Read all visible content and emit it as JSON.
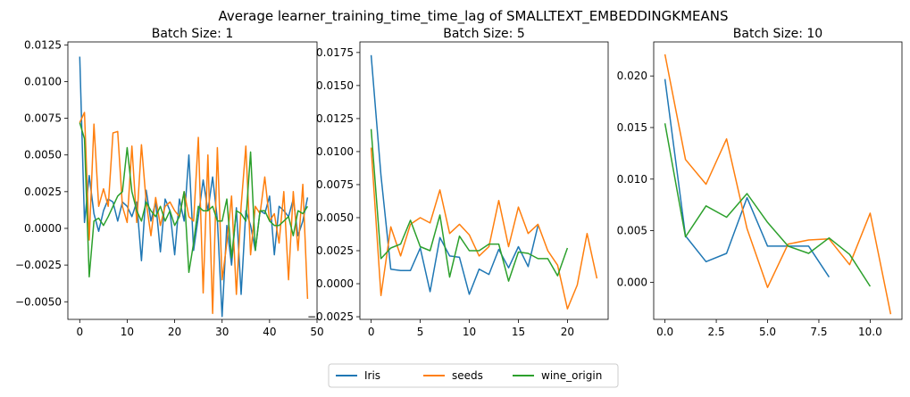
{
  "suptitle": "Average learner_training_time_time_lag of SMALLTEXT_EMBEDDINGKMEANS",
  "legend": [
    {
      "label": "Iris",
      "color": "#1f77b4"
    },
    {
      "label": "seeds",
      "color": "#ff7f0e"
    },
    {
      "label": "wine_origin",
      "color": "#2ca02c"
    }
  ],
  "chart_data": [
    {
      "type": "line",
      "title": "Batch Size: 1",
      "xlim": [
        -2.5,
        50
      ],
      "ylim": [
        -0.0062,
        0.0127
      ],
      "xticks": [
        0,
        10,
        20,
        30,
        40,
        50
      ],
      "xtick_labels": [
        "0",
        "10",
        "20",
        "30",
        "40",
        "50"
      ],
      "yticks": [
        -0.005,
        -0.0025,
        0,
        0.0025,
        0.005,
        0.0075,
        0.01,
        0.0125
      ],
      "ytick_labels": [
        "−0.0050",
        "−0.0025",
        "0.0000",
        "0.0025",
        "0.0050",
        "0.0075",
        "0.0100",
        "0.0125"
      ],
      "series": [
        {
          "name": "Iris",
          "values": [
            0.0117,
            0.0004,
            0.0036,
            0.001,
            -0.0002,
            0.0012,
            0.002,
            0.0018,
            0.0005,
            0.0018,
            0.0015,
            0.0008,
            0.0018,
            -0.0022,
            0.0026,
            0.0005,
            0.0018,
            -0.0016,
            0.002,
            0.0012,
            -0.0018,
            0.002,
            0.0005,
            0.005,
            -0.0015,
            0.0008,
            0.0033,
            0.0012,
            0.0035,
            0.0006,
            -0.006,
            0.0002,
            -0.0025,
            0.0014,
            -0.0045,
            0.0012,
            0.0002,
            -0.0015,
            0.0012,
            0.001,
            0.0022,
            -0.0018,
            0.0015,
            0.0012,
            0.0008,
            0.002,
            -0.0005,
            0.0005,
            0.0021
          ]
        },
        {
          "name": "seeds",
          "values": [
            0.0072,
            0.0079,
            -0.0008,
            0.0071,
            0.0015,
            0.0027,
            0.0015,
            0.0065,
            0.0066,
            0.0015,
            0.0004,
            0.0056,
            0.0004,
            0.0057,
            0.0018,
            -0.0005,
            0.0021,
            0.0002,
            0.0015,
            0.0018,
            0.0012,
            0.0008,
            0.0025,
            0.0008,
            0.0005,
            0.0062,
            -0.0044,
            0.005,
            -0.0058,
            0.0055,
            -0.0035,
            -0.001,
            0.0022,
            -0.0045,
            0.0015,
            0.0056,
            -0.0018,
            0.0015,
            0.001,
            0.0035,
            0.0005,
            0.001,
            -0.001,
            0.0025,
            -0.0035,
            0.0025,
            -0.0015,
            0.003,
            -0.0048
          ]
        },
        {
          "name": "wine_origin",
          "values": [
            0.0072,
            0.0061,
            -0.0033,
            0.0005,
            0.0007,
            0.0002,
            0.0008,
            0.0015,
            0.0022,
            0.0025,
            0.0055,
            0.0025,
            0.0012,
            0.0005,
            0.0018,
            0.0012,
            0.0008,
            0.0015,
            0.0005,
            0.0012,
            0.0002,
            0.0008,
            0.0025,
            -0.003,
            -0.001,
            0.0015,
            0.0012,
            0.0012,
            0.0015,
            0.0005,
            0.0005,
            0.002,
            -0.002,
            0.0012,
            0.001,
            0.0005,
            0.0052,
            -0.0015,
            0.0012,
            0.0012,
            0.0005,
            0.0002,
            0.0002,
            0.0005,
            0.0008,
            -0.0005,
            0.0012,
            0.001,
            0.0015
          ]
        }
      ]
    },
    {
      "type": "line",
      "title": "Batch Size: 5",
      "xlim": [
        -1.15,
        24.15
      ],
      "ylim": [
        -0.0027,
        0.0183
      ],
      "xticks": [
        0,
        5,
        10,
        15,
        20
      ],
      "xtick_labels": [
        "0",
        "5",
        "10",
        "15",
        "20"
      ],
      "yticks": [
        -0.0025,
        0,
        0.0025,
        0.005,
        0.0075,
        0.01,
        0.0125,
        0.015,
        0.0175
      ],
      "ytick_labels": [
        "−0.0025",
        "0.0000",
        "0.0025",
        "0.0050",
        "0.0075",
        "0.0100",
        "0.0125",
        "0.0150",
        "0.0175"
      ],
      "series": [
        {
          "name": "Iris",
          "values": [
            0.0173,
            0.0082,
            0.0011,
            0.001,
            0.001,
            0.0027,
            -0.0006,
            0.0035,
            0.0021,
            0.002,
            -0.0008,
            0.0011,
            0.0007,
            0.0026,
            0.0012,
            0.0028,
            0.0013,
            0.0044
          ]
        },
        {
          "name": "seeds",
          "values": [
            0.0103,
            -0.0009,
            0.0043,
            0.0021,
            0.0045,
            0.005,
            0.0046,
            0.0071,
            0.0038,
            0.0045,
            0.0037,
            0.0021,
            0.0028,
            0.0063,
            0.0028,
            0.0058,
            0.0038,
            0.0045,
            0.0025,
            0.0014,
            -0.0019,
            -0.0001,
            0.0038,
            0.0004
          ]
        },
        {
          "name": "wine_origin",
          "values": [
            0.0117,
            0.0019,
            0.0027,
            0.003,
            0.0048,
            0.0028,
            0.0025,
            0.0052,
            0.0005,
            0.0036,
            0.0025,
            0.0025,
            0.003,
            0.003,
            0.0002,
            0.0024,
            0.0023,
            0.0019,
            0.0019,
            0.0006,
            0.0027
          ]
        }
      ]
    },
    {
      "type": "line",
      "title": "Batch Size: 10",
      "xlim": [
        -0.55,
        11.55
      ],
      "ylim": [
        -0.0036,
        0.0233
      ],
      "xticks": [
        0,
        2.5,
        5,
        7.5,
        10
      ],
      "xtick_labels": [
        "0.0",
        "2.5",
        "5.0",
        "7.5",
        "10.0"
      ],
      "yticks": [
        0,
        0.005,
        0.01,
        0.015,
        0.02
      ],
      "ytick_labels": [
        "0.000",
        "0.005",
        "0.010",
        "0.015",
        "0.020"
      ],
      "series": [
        {
          "name": "Iris",
          "values": [
            0.0197,
            0.0045,
            0.002,
            0.0028,
            0.0082,
            0.0035,
            0.0035,
            0.0035,
            0.0005
          ]
        },
        {
          "name": "seeds",
          "values": [
            0.0221,
            0.0119,
            0.0095,
            0.0139,
            0.0052,
            -0.0005,
            0.0037,
            0.0041,
            0.0042,
            0.0017,
            0.0067,
            -0.0031
          ]
        },
        {
          "name": "wine_origin",
          "values": [
            0.0154,
            0.0044,
            0.0074,
            0.0063,
            0.0086,
            0.0058,
            0.0035,
            0.0028,
            0.0043,
            0.0027,
            -0.0004
          ]
        }
      ]
    }
  ]
}
